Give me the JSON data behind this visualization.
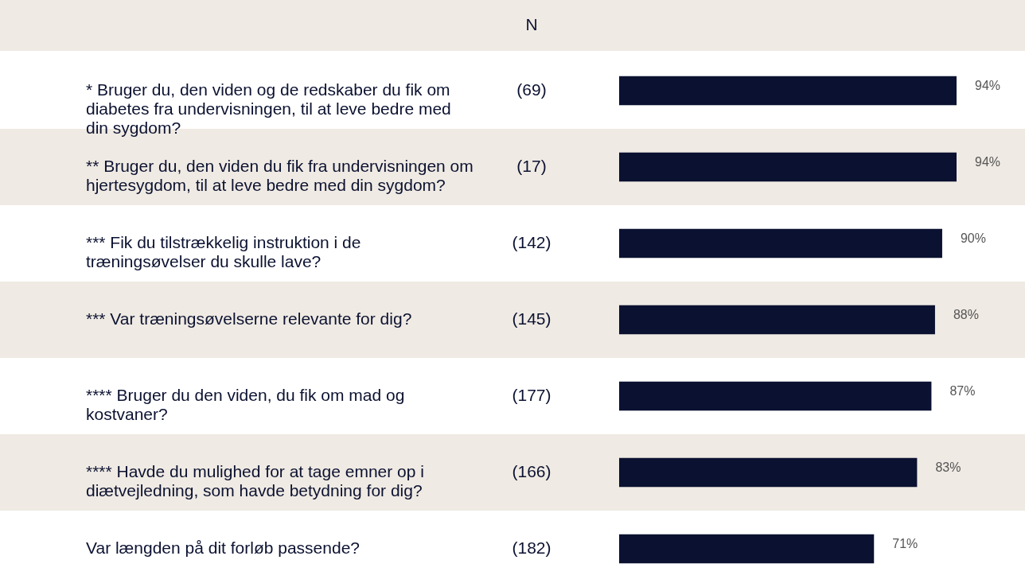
{
  "chart_data": {
    "type": "bar",
    "orientation": "horizontal",
    "color": "#0b1130",
    "categories": [
      "* Bruger du, den viden og de redskaber du fik om diabetes fra undervisningen, til at leve bedre med din sygdom?",
      "** Bruger du, den viden du fik fra undervisningen om hjertesygdom, til at leve bedre med din sygdom?",
      "*** Fik du tilstrækkelig instruktion i de træningsøvelser du skulle lave?",
      "*** Var træningsøvelserne relevante for dig?",
      "**** Bruger du den viden, du fik om mad og kostvaner?",
      "**** Havde du mulighed for at tage emner op i diætvejledning, som havde betydning for dig?",
      "Var længden på dit forløb passende?"
    ],
    "values": [
      94,
      94,
      90,
      88,
      87,
      83,
      71
    ],
    "value_labels": [
      "94%",
      "94%",
      "90%",
      "88%",
      "87%",
      "83%",
      "71%"
    ],
    "tick_labels": "y",
    "annotations": [
      "N",
      "(69)",
      "(17)",
      "(142)",
      "(145)",
      "(177)",
      "(166)",
      "(182)"
    ]
  }
}
